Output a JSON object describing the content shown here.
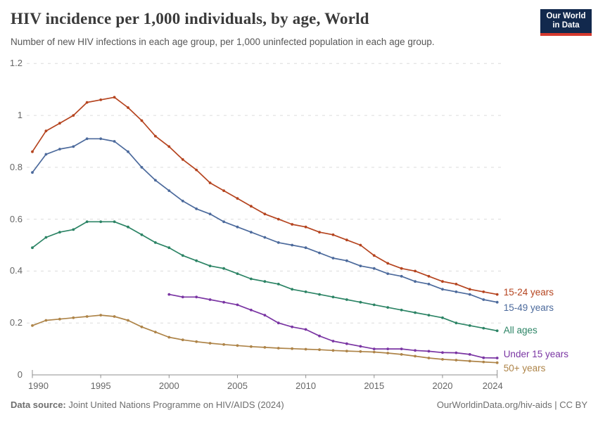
{
  "header": {
    "title": "HIV incidence per 1,000 individuals, by age, World",
    "subtitle": "Number of new HIV infections in each age group, per 1,000 uninfected population in each age group.",
    "logo": {
      "line1": "Our World",
      "line2": "in Data",
      "bg_color": "#12294D",
      "accent_color": "#D5392E"
    }
  },
  "footer": {
    "datasource_label": "Data source:",
    "datasource_value": " Joint United Nations Programme on HIV/AIDS (2024)",
    "attribution": "OurWorldinData.org/hiv-aids | CC BY"
  },
  "style_colors": {
    "axis": "#8F8F8F",
    "grid": "#DCDCDC",
    "tick_text": "#666666",
    "title_text": "#3A3A3A",
    "subtitle_text": "#565656"
  },
  "chart_data": {
    "type": "line",
    "title": "HIV incidence per 1,000 individuals, by age, World",
    "xlabel": "",
    "ylabel": "",
    "xlim": [
      1990,
      2024
    ],
    "ylim": [
      0,
      1.2
    ],
    "x_ticks": [
      1990,
      1995,
      2000,
      2005,
      2010,
      2015,
      2020,
      2024
    ],
    "y_ticks": [
      0,
      0.2,
      0.4,
      0.6,
      0.8,
      1,
      1.2
    ],
    "grid": "horizontal-dashed",
    "legend_position": "line-end-labels-right",
    "marker": "point-on-every-year",
    "x": [
      1990,
      1991,
      1992,
      1993,
      1994,
      1995,
      1996,
      1997,
      1998,
      1999,
      2000,
      2001,
      2002,
      2003,
      2004,
      2005,
      2006,
      2007,
      2008,
      2009,
      2010,
      2011,
      2012,
      2013,
      2014,
      2015,
      2016,
      2017,
      2018,
      2019,
      2020,
      2021,
      2022,
      2023,
      2024
    ],
    "series": [
      {
        "name": "15-24 years",
        "color": "#B5441F",
        "values": [
          0.86,
          0.94,
          0.97,
          1.0,
          1.05,
          1.06,
          1.07,
          1.03,
          0.98,
          0.92,
          0.88,
          0.83,
          0.79,
          0.74,
          0.71,
          0.68,
          0.65,
          0.62,
          0.6,
          0.58,
          0.57,
          0.55,
          0.54,
          0.52,
          0.5,
          0.46,
          0.43,
          0.41,
          0.4,
          0.38,
          0.36,
          0.35,
          0.33,
          0.32,
          0.31
        ]
      },
      {
        "name": "15-49 years",
        "color": "#4C6A9C",
        "values": [
          0.78,
          0.85,
          0.87,
          0.88,
          0.91,
          0.91,
          0.9,
          0.86,
          0.8,
          0.75,
          0.71,
          0.67,
          0.64,
          0.62,
          0.59,
          0.57,
          0.55,
          0.53,
          0.51,
          0.5,
          0.49,
          0.47,
          0.45,
          0.44,
          0.42,
          0.41,
          0.39,
          0.38,
          0.36,
          0.35,
          0.33,
          0.32,
          0.31,
          0.29,
          0.28
        ]
      },
      {
        "name": "All ages",
        "color": "#2C8465",
        "values": [
          0.49,
          0.53,
          0.55,
          0.56,
          0.59,
          0.59,
          0.59,
          0.57,
          0.54,
          0.51,
          0.49,
          0.46,
          0.44,
          0.42,
          0.41,
          0.39,
          0.37,
          0.36,
          0.35,
          0.33,
          0.32,
          0.31,
          0.3,
          0.29,
          0.28,
          0.27,
          0.26,
          0.25,
          0.24,
          0.23,
          0.22,
          0.2,
          0.19,
          0.18,
          0.17
        ]
      },
      {
        "name": "Under 15 years",
        "color": "#7A35A3",
        "values": [
          null,
          null,
          null,
          null,
          null,
          null,
          null,
          null,
          null,
          null,
          0.31,
          0.3,
          0.3,
          0.29,
          0.28,
          0.27,
          0.25,
          0.23,
          0.2,
          0.185,
          0.175,
          0.15,
          0.13,
          0.12,
          0.11,
          0.1,
          0.1,
          0.1,
          0.094,
          0.091,
          0.086,
          0.085,
          0.079,
          0.066,
          0.065
        ]
      },
      {
        "name": "50+ years",
        "color": "#AE8448",
        "values": [
          0.19,
          0.21,
          0.215,
          0.22,
          0.225,
          0.23,
          0.225,
          0.21,
          0.185,
          0.165,
          0.145,
          0.135,
          0.128,
          0.122,
          0.117,
          0.113,
          0.109,
          0.106,
          0.103,
          0.101,
          0.099,
          0.097,
          0.094,
          0.092,
          0.09,
          0.088,
          0.084,
          0.079,
          0.072,
          0.065,
          0.06,
          0.057,
          0.053,
          0.05,
          0.047
        ]
      }
    ]
  }
}
